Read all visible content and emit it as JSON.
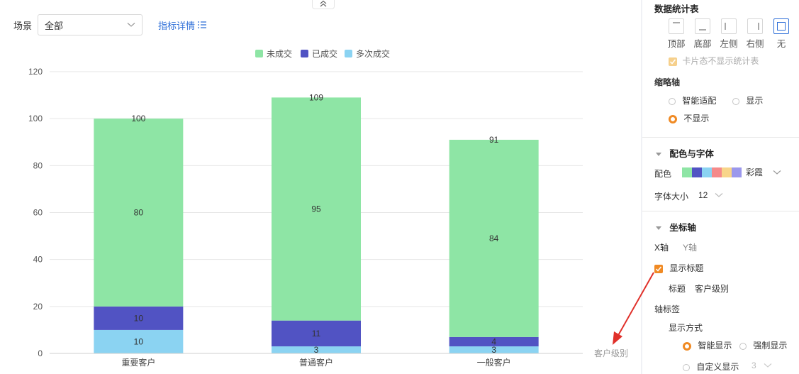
{
  "toolbar": {
    "scene_label": "场景",
    "scene_value": "全部",
    "detail_link": "指标详情"
  },
  "chart_data": {
    "type": "bar",
    "stacked": true,
    "categories": [
      "重要客户",
      "普通客户",
      "一般客户"
    ],
    "series": [
      {
        "name": "未成交",
        "values": [
          80,
          95,
          84
        ],
        "color": "#8ee5a5"
      },
      {
        "name": "已成交",
        "values": [
          10,
          11,
          4
        ],
        "color": "#5153c3"
      },
      {
        "name": "多次成交",
        "values": [
          10,
          3,
          3
        ],
        "color": "#8bd3f2"
      }
    ],
    "totals": [
      100,
      109,
      91
    ],
    "y_ticks": [
      "0",
      "20",
      "40",
      "60",
      "80",
      "100",
      "120"
    ],
    "ylim": [
      0,
      120
    ],
    "xlabel": "客户级别",
    "legend_position": "top-center",
    "grid": true
  },
  "sidebar": {
    "stats_title": "数据统计表",
    "positions": [
      "顶部",
      "底部",
      "左侧",
      "右侧",
      "无"
    ],
    "card_option": "卡片态不显示统计表",
    "thumb_title": "缩略轴",
    "thumb_options": [
      "智能适配",
      "显示",
      "不显示"
    ],
    "color_font_title": "配色与字体",
    "color_label": "配色",
    "palette_name": "彩霞",
    "palette_colors": [
      "#8ee5a5",
      "#5153c3",
      "#8bd3f2",
      "#f58a8a",
      "#f8d58a",
      "#9b98ec"
    ],
    "font_size_label": "字体大小",
    "font_size_value": "12",
    "axis_title": "坐标轴",
    "x_axis_tab": "X轴",
    "y_axis_tab": "Y轴",
    "show_title_label": "显示标题",
    "title_label": "标题",
    "title_value": "客户级别",
    "axis_tag_label": "轴标签",
    "display_mode_label": "显示方式",
    "display_options": [
      "智能显示",
      "强制显示",
      "自定义显示"
    ],
    "custom_value": "3"
  }
}
